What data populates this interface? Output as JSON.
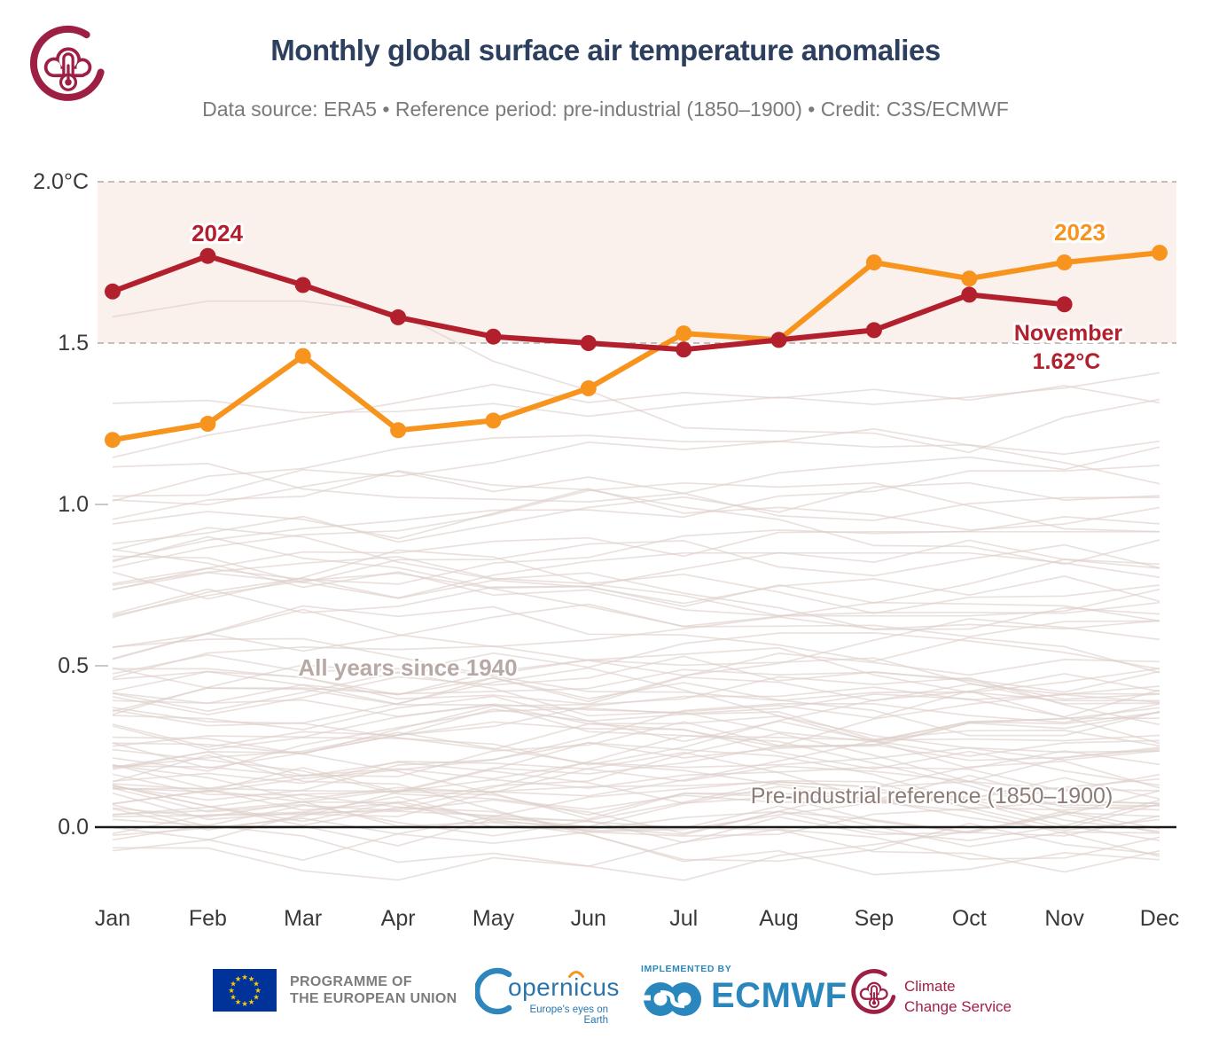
{
  "header": {
    "title": "Monthly global surface air temperature anomalies",
    "subtitle": "Data source: ERA5 • Reference period: pre-industrial (1850–1900) • Credit: C3S/ECMWF"
  },
  "chart_data": {
    "type": "line",
    "title": "Monthly global surface air temperature anomalies",
    "x_categories": [
      "Jan",
      "Feb",
      "Mar",
      "Apr",
      "May",
      "Jun",
      "Jul",
      "Aug",
      "Sep",
      "Oct",
      "Nov",
      "Dec"
    ],
    "y_axis": {
      "unit": "°C",
      "tick_labels": [
        "2.0°C",
        "1.5",
        "1.0",
        "0.5",
        "0.0"
      ],
      "tick_values": [
        2.0,
        1.5,
        1.0,
        0.5,
        0.0
      ],
      "ylim": [
        -0.3,
        2.05
      ],
      "grid": "dashed lines at 1.5 and 2.0 only, solid axis at 0.0"
    },
    "reference_band": {
      "from": 1.5,
      "to": 2.0,
      "fill": "#faf0ec",
      "boundary_style": "dashed"
    },
    "series": [
      {
        "name": "2023",
        "color": "#f7941e",
        "values": [
          1.2,
          1.25,
          1.46,
          1.23,
          1.26,
          1.36,
          1.53,
          1.51,
          1.75,
          1.7,
          1.75,
          1.78
        ]
      },
      {
        "name": "2024",
        "color": "#b2202e",
        "values": [
          1.66,
          1.77,
          1.68,
          1.58,
          1.52,
          1.5,
          1.48,
          1.51,
          1.54,
          1.65,
          1.62,
          null
        ]
      }
    ],
    "background_series": {
      "label": "All years since 1940",
      "year_range": "1940–2022",
      "approx_value_range_c": [
        -0.2,
        1.63
      ],
      "color": "#ddcfca"
    },
    "annotations": {
      "label_2024": "2024",
      "label_2023": "2023",
      "november_month": "November",
      "november_value": "1.62°C",
      "all_years": "All years since 1940",
      "preindustrial": "Pre-industrial reference (1850–1900)"
    },
    "legend_position": "inline labels next to lines"
  },
  "footer": {
    "eu": {
      "line1": "PROGRAMME OF",
      "line2": "THE EUROPEAN UNION"
    },
    "copernicus": {
      "wordmark": "opernicus",
      "tagline": "Europe's eyes on Earth"
    },
    "ecmwf": {
      "implemented_by": "IMPLEMENTED BY",
      "wordmark": "ECMWF"
    },
    "c3s": {
      "line1": "Climate",
      "line2": "Change Service"
    }
  },
  "colors": {
    "accent_2023": "#f7941e",
    "accent_2024": "#b2202e",
    "title_navy": "#2d3f5e",
    "band_pink": "#faf0ec",
    "background_lines": "#ddcfca",
    "eu_blue": "#003399",
    "ecmwf_blue": "#2a87bd",
    "c3s_maroon": "#9e1f44"
  }
}
